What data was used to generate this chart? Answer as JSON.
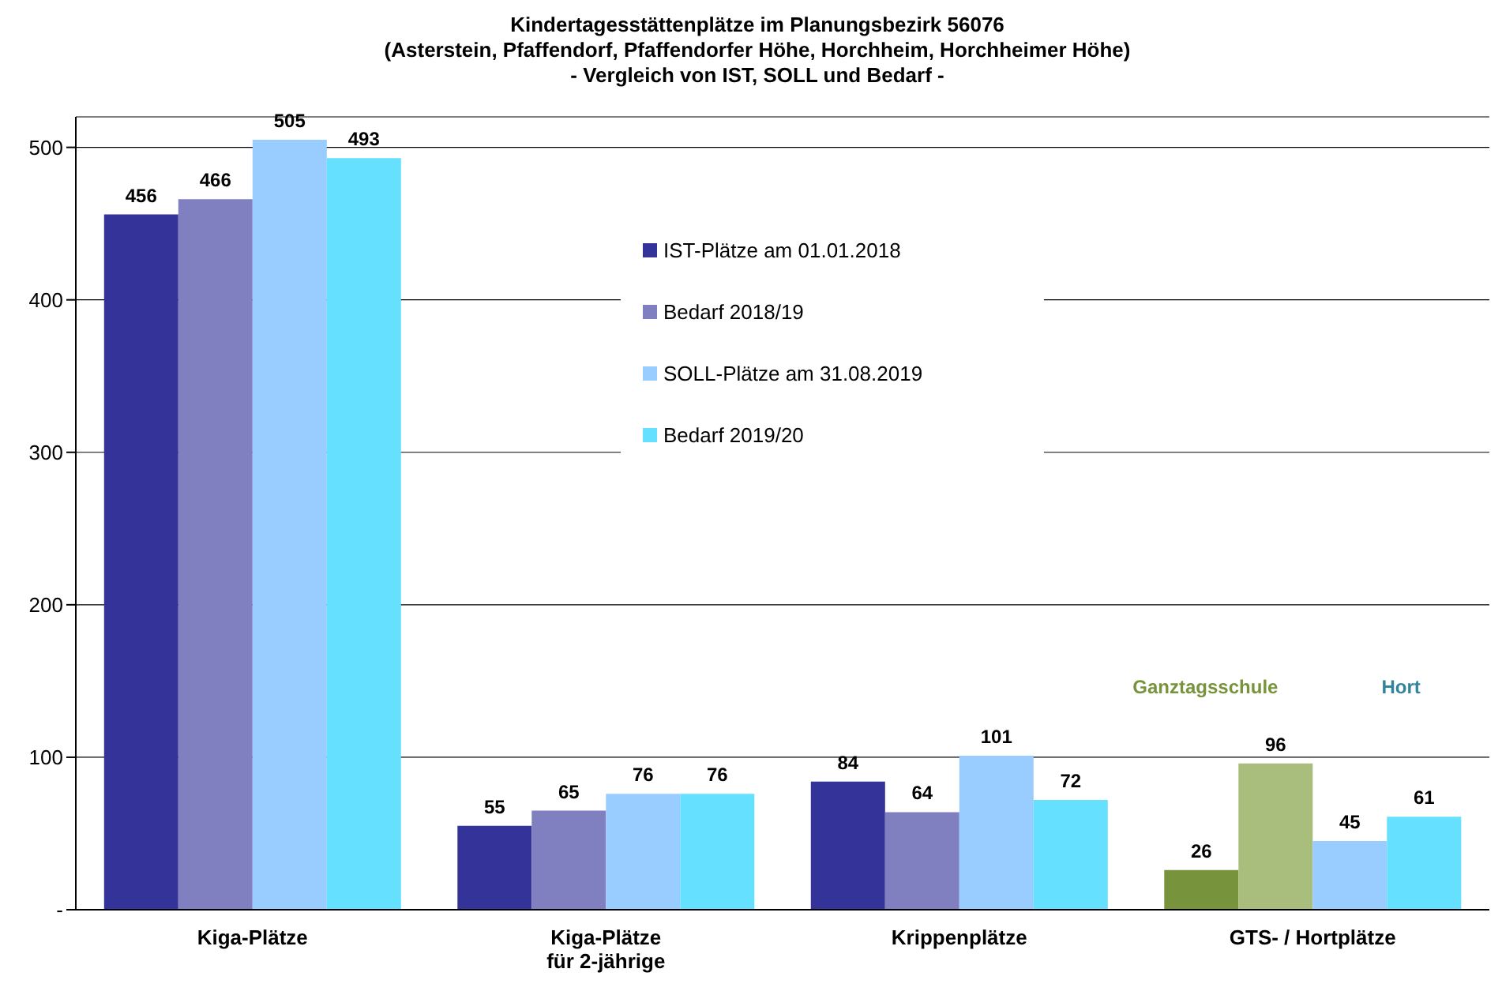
{
  "chart_data": {
    "type": "bar",
    "title": "Kindertagesstättenplätze im Planungsbezirk 56076",
    "subtitle": "(Asterstein, Pfaffendorf, Pfaffendorfer Höhe, Horchheim, Horchheimer Höhe)\n- Vergleich von IST, SOLL und Bedarf -",
    "categories": [
      "Kiga-Plätze",
      "Kiga-Plätze\nfür 2-jährige",
      "Krippenplätze",
      "GTS- / Hortplätze"
    ],
    "series": [
      {
        "name": "IST-Plätze am 01.01.2018",
        "color": "#333399",
        "colors": [
          "#333399",
          "#333399",
          "#333399",
          "#77933c"
        ],
        "values": [
          456,
          55,
          84,
          26
        ]
      },
      {
        "name": "Bedarf 2018/19",
        "color": "#8080c0",
        "colors": [
          "#8080c0",
          "#8080c0",
          "#8080c0",
          "#a9be7c"
        ],
        "values": [
          466,
          65,
          64,
          96
        ]
      },
      {
        "name": "SOLL-Plätze am 31.08.2019",
        "color": "#99ccff",
        "values": [
          505,
          76,
          101,
          45
        ]
      },
      {
        "name": "Bedarf 2019/20",
        "color": "#66e0ff",
        "values": [
          493,
          76,
          72,
          61
        ]
      }
    ],
    "annotations": [
      "Ganztagsschule",
      "Hort"
    ],
    "ylim": [
      0,
      520
    ],
    "yticks": [
      {
        "value": 0,
        "label": "-"
      },
      100,
      200,
      300,
      400,
      500
    ],
    "grid": "y",
    "legend": "top",
    "data_labels": true
  }
}
